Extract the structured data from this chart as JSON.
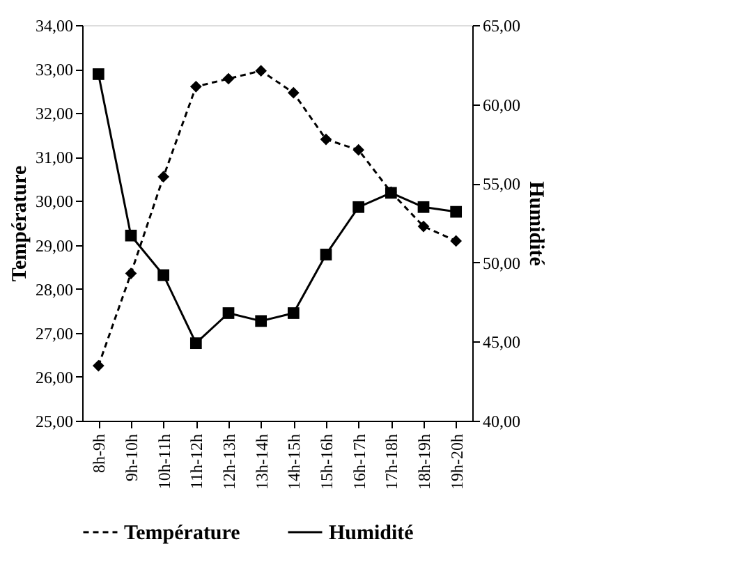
{
  "chart_data": {
    "type": "line",
    "categories": [
      "8h-9h",
      "9h-10h",
      "10h-11h",
      "11h-12h",
      "12h-13h",
      "13h-14h",
      "14h-15h",
      "15h-16h",
      "16h-17h",
      "17h-18h",
      "18h-19h",
      "19h-20h"
    ],
    "series": [
      {
        "name": "Température",
        "color": "#000000",
        "marker": "diamond",
        "line_style": "dashed",
        "values": [
          26.25,
          28.35,
          30.55,
          32.6,
          32.78,
          32.96,
          32.46,
          31.4,
          31.16,
          30.2,
          29.42,
          29.09
        ]
      },
      {
        "name": "Humidité",
        "color": "#000000",
        "marker": "square",
        "line_style": "solid",
        "axis": "y2",
        "values": [
          61.9,
          51.7,
          49.2,
          44.9,
          46.8,
          46.3,
          46.8,
          50.5,
          53.5,
          54.4,
          53.5,
          53.2
        ]
      }
    ],
    "ylabel": "Température",
    "y2label": "Humidité",
    "ylim": [
      25,
      34
    ],
    "yticks": [
      {
        "value": 25,
        "label": "25,00"
      },
      {
        "value": 26,
        "label": "26,00"
      },
      {
        "value": 27,
        "label": "27,00"
      },
      {
        "value": 28,
        "label": "28,00"
      },
      {
        "value": 29,
        "label": "29,00"
      },
      {
        "value": 30,
        "label": "30,00"
      },
      {
        "value": 31,
        "label": "31,00"
      },
      {
        "value": 32,
        "label": "32,00"
      },
      {
        "value": 33,
        "label": "33,00"
      },
      {
        "value": 34,
        "label": "34,00"
      }
    ],
    "y2lim": [
      40,
      65
    ],
    "y2ticks": [
      {
        "value": 40,
        "label": "40,00"
      },
      {
        "value": 45,
        "label": "45,00"
      },
      {
        "value": 50,
        "label": "50,00"
      },
      {
        "value": 55,
        "label": "55,00"
      },
      {
        "value": 60,
        "label": "60,00"
      },
      {
        "value": 65,
        "label": "65,00"
      }
    ],
    "grid": false,
    "legend": "bottom"
  }
}
